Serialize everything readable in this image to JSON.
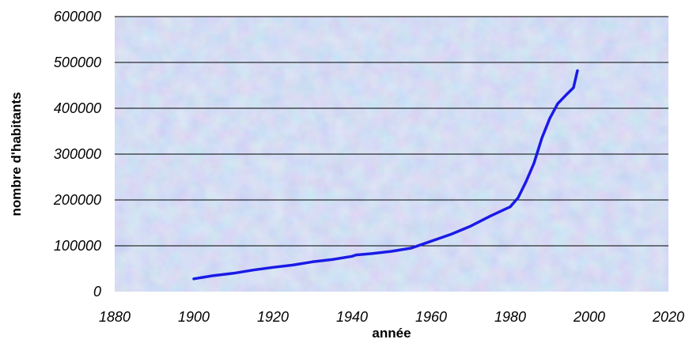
{
  "colors": {
    "line": "#1a1ae6",
    "gridline": "#000000",
    "plot_bg_base": "#b9c8ec"
  },
  "chart_data": {
    "type": "line",
    "title": "",
    "xlabel": "année",
    "ylabel": "nombre d'habitants",
    "xlim": [
      1880,
      2020
    ],
    "ylim": [
      0,
      600000
    ],
    "xticks": [
      1880,
      1900,
      1920,
      1940,
      1960,
      1980,
      2000,
      2020
    ],
    "yticks": [
      0,
      100000,
      200000,
      300000,
      400000,
      500000,
      600000
    ],
    "ytick_labels": [
      "0",
      "100000",
      "200000",
      "300000",
      "400000",
      "500000",
      "600000"
    ],
    "grid": "horizontal",
    "legend": "none",
    "series": [
      {
        "x": [
          1900,
          1905,
          1910,
          1915,
          1920,
          1925,
          1930,
          1935,
          1940,
          1941,
          1945,
          1950,
          1955,
          1960,
          1965,
          1970,
          1975,
          1978,
          1980,
          1982,
          1984,
          1986,
          1988,
          1990,
          1992,
          1994,
          1996,
          1997
        ],
        "y": [
          28000,
          35000,
          40000,
          47000,
          53000,
          58000,
          65000,
          70000,
          77000,
          80000,
          83000,
          88000,
          95000,
          110000,
          125000,
          143000,
          165000,
          177000,
          185000,
          205000,
          240000,
          280000,
          335000,
          378000,
          410000,
          428000,
          445000,
          482000
        ]
      }
    ]
  }
}
